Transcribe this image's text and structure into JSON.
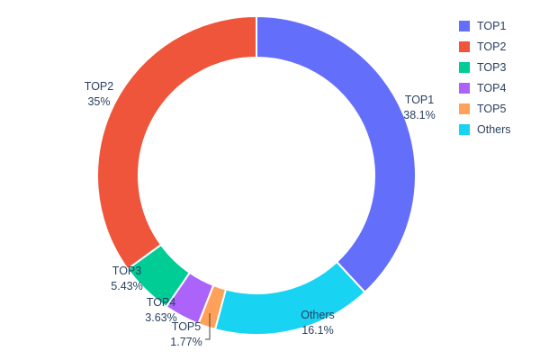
{
  "figure": {
    "background": "#ffffff",
    "text_color": "#2a3f5f"
  },
  "chart_data": {
    "type": "pie",
    "title": "",
    "hole": 0.74,
    "direction": "clockwise",
    "start_angle_deg": 0,
    "labels_outside": true,
    "legend_position": "top-right",
    "slices": [
      {
        "label": "TOP1",
        "value": 38.1,
        "pct_label": "38.1%",
        "color": "#636EFA"
      },
      {
        "label": "TOP2",
        "value": 35.0,
        "pct_label": "35%",
        "color": "#EF553B"
      },
      {
        "label": "TOP3",
        "value": 5.43,
        "pct_label": "5.43%",
        "color": "#00CC96"
      },
      {
        "label": "TOP4",
        "value": 3.63,
        "pct_label": "3.63%",
        "color": "#AB63FA"
      },
      {
        "label": "TOP5",
        "value": 1.77,
        "pct_label": "1.77%",
        "color": "#FFA15A"
      },
      {
        "label": "Others",
        "value": 16.1,
        "pct_label": "16.1%",
        "color": "#19D3F3"
      }
    ],
    "draw_order_clockwise": [
      0,
      5,
      4,
      3,
      2,
      1
    ]
  }
}
